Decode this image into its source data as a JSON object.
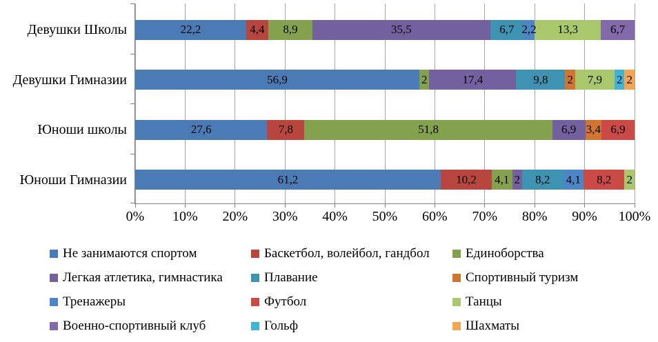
{
  "chart_data": {
    "type": "stacked_bar_horizontal",
    "title": "",
    "xlabel": "",
    "ylabel": "",
    "categories": [
      "Девушки Школы",
      "Девушки Гимназии",
      "Юноши школы",
      "Юноши Гимназии"
    ],
    "series": [
      {
        "name": "Не занимаются спортом",
        "color": "#4A7BB5",
        "values": [
          22.2,
          56.9,
          27.6,
          61.2
        ]
      },
      {
        "name": "Баскетбол, волейбол, гандбол",
        "color": "#B8463F",
        "values": [
          4.4,
          0,
          7.8,
          10.2
        ]
      },
      {
        "name": "Единоборства",
        "color": "#84A24E",
        "values": [
          8.9,
          2,
          51.8,
          4.1
        ]
      },
      {
        "name": "Легкая атлетика, гимнастика",
        "color": "#73609F",
        "values": [
          35.5,
          17.4,
          6.9,
          2
        ]
      },
      {
        "name": "Плавание",
        "color": "#3D93B1",
        "values": [
          6.7,
          9.8,
          0,
          8.2
        ]
      },
      {
        "name": "Спортивный туризм",
        "color": "#D2752E",
        "values": [
          0,
          2,
          3.4,
          0
        ]
      },
      {
        "name": "Тренажеры",
        "color": "#4C86C6",
        "values": [
          2.2,
          0,
          0,
          4.1
        ]
      },
      {
        "name": "Футбол",
        "color": "#CB4A46",
        "values": [
          0,
          0,
          6.9,
          8.2
        ]
      },
      {
        "name": "Танцы",
        "color": "#A9C86B",
        "values": [
          13.3,
          7.9,
          0,
          2
        ]
      },
      {
        "name": "Военно-спортивный клуб",
        "color": "#8269A9",
        "values": [
          6.7,
          0,
          0,
          0
        ]
      },
      {
        "name": "Гольф",
        "color": "#3FB4D8",
        "values": [
          0,
          2,
          0,
          0
        ]
      },
      {
        "name": "Шахматы",
        "color": "#F6A352",
        "values": [
          0,
          2,
          0,
          0
        ]
      }
    ],
    "segment_labels": [
      [
        "22,2",
        "4,4",
        "8,9",
        "35,5",
        "6,7",
        "2,2",
        "13,3",
        "6,7"
      ],
      [
        "56,9",
        "2",
        "17,4",
        "9,8",
        "2",
        "7,9",
        "2",
        "2"
      ],
      [
        "27,6",
        "7,8",
        "51,8",
        "6,9",
        "3,4",
        "6,9"
      ],
      [
        "61,2",
        "10,2",
        "4,1",
        "2",
        "8,2",
        "4,1",
        "8,2",
        "2"
      ]
    ],
    "x_ticks": [
      "0%",
      "10%",
      "20%",
      "30%",
      "40%",
      "50%",
      "60%",
      "70%",
      "80%",
      "90%",
      "100%"
    ],
    "xlim": [
      0,
      100
    ],
    "grid": "vertical",
    "legend_position": "bottom",
    "legend_columns": 3,
    "bars_normalized_to_100_percent": true,
    "label_decimal_separator": ","
  },
  "colors": {
    "background": "#FFFFFF",
    "gridline": "#A6A6A6",
    "axis": "#808080",
    "data_label": "#000000"
  }
}
